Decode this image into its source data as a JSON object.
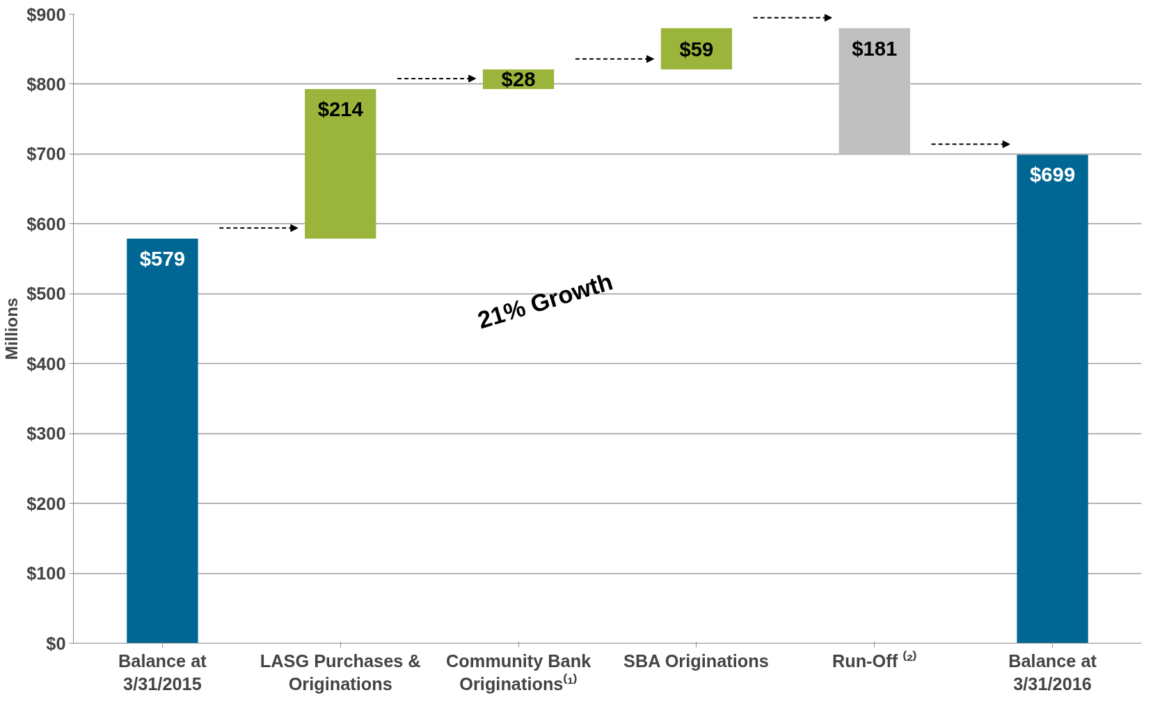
{
  "chart_data": {
    "type": "bar",
    "ylabel": "Millions",
    "categories": [
      "Balance at\n3/31/2015",
      "LASG Purchases &\nOriginations",
      "Community Bank\nOriginations⁽¹⁾",
      "SBA Originations",
      "Run-Off ⁽²⁾",
      "Balance at\n3/31/2016"
    ],
    "values": [
      579,
      214,
      28,
      59,
      -181,
      699
    ],
    "base": [
      0,
      579,
      793,
      821,
      880,
      0
    ],
    "colors": [
      "#006794",
      "#9bb53c",
      "#9bb53c",
      "#9bb53c",
      "#bfbfbf",
      "#006794"
    ],
    "value_labels": [
      "$579",
      "$214",
      "$28",
      "$59",
      "$181",
      "$699"
    ],
    "ylim": [
      0,
      900
    ],
    "yticks": [
      {
        "value": 0,
        "label": "$0"
      },
      {
        "value": 100,
        "label": "$100"
      },
      {
        "value": 200,
        "label": "$200"
      },
      {
        "value": 300,
        "label": "$300"
      },
      {
        "value": 400,
        "label": "$400"
      },
      {
        "value": 500,
        "label": "$500"
      },
      {
        "value": 600,
        "label": "$600"
      },
      {
        "value": 700,
        "label": "$700"
      },
      {
        "value": 800,
        "label": "$800"
      },
      {
        "value": 900,
        "label": "$900"
      }
    ],
    "grid": "y",
    "annotations": [
      "21% Growth"
    ]
  }
}
